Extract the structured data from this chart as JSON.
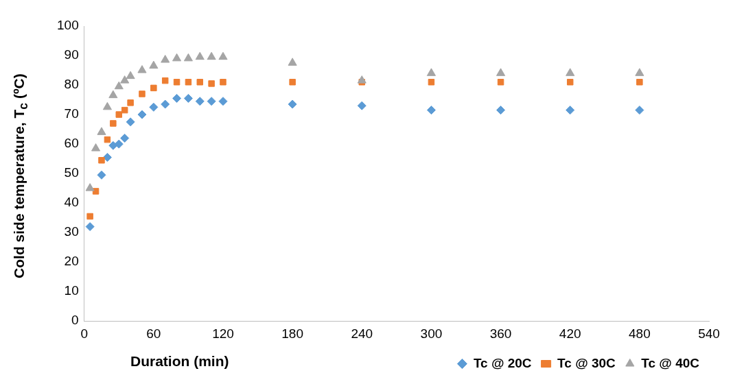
{
  "chart_data": {
    "type": "scatter",
    "xlabel": "Duration (min)",
    "ylabel": "Cold side temperature, T$_{c}$  (ºC)",
    "xlim": [
      0,
      540
    ],
    "xticks": [
      0,
      60,
      120,
      180,
      240,
      300,
      360,
      420,
      480,
      540
    ],
    "ylim": [
      0,
      100
    ],
    "yticks": [
      0,
      10,
      20,
      30,
      40,
      50,
      60,
      70,
      80,
      90,
      100
    ],
    "grid": false,
    "legend": "bottom right",
    "series": [
      {
        "name": "Tc @ 20C",
        "color": "#5b9bd5",
        "marker": "diamond",
        "x": [
          5,
          15,
          20,
          25,
          30,
          35,
          40,
          50,
          60,
          70,
          80,
          90,
          100,
          110,
          120,
          180,
          240,
          300,
          360,
          420,
          480
        ],
        "values": [
          32,
          49.5,
          55.5,
          59.5,
          60,
          62,
          67.5,
          70,
          72.5,
          73.5,
          75.5,
          75.5,
          74.5,
          74.5,
          74.5,
          73.5,
          73,
          71.5,
          71.5,
          71.5,
          71.5
        ]
      },
      {
        "name": "Tc @ 30C",
        "color": "#ed7d31",
        "marker": "square",
        "x": [
          5,
          10,
          15,
          20,
          25,
          30,
          35,
          40,
          50,
          60,
          70,
          80,
          90,
          100,
          110,
          120,
          180,
          240,
          300,
          360,
          420,
          480
        ],
        "values": [
          35.5,
          44,
          54.5,
          61.5,
          67,
          70,
          71.5,
          74,
          77,
          79,
          81.5,
          81,
          81,
          81,
          80.5,
          81,
          81,
          81,
          81,
          81,
          81,
          81
        ]
      },
      {
        "name": "Tc @ 40C",
        "color": "#a5a5a5",
        "marker": "triangle",
        "x": [
          5,
          10,
          15,
          20,
          25,
          30,
          35,
          40,
          50,
          60,
          70,
          80,
          90,
          100,
          110,
          120,
          180,
          240,
          300,
          360,
          420,
          480
        ],
        "values": [
          45,
          58.5,
          64,
          72.5,
          76.5,
          79.5,
          81.5,
          83,
          85,
          86.5,
          88.5,
          89,
          89,
          89.5,
          89.5,
          89.5,
          87.5,
          81.5,
          84,
          84,
          84,
          84
        ]
      }
    ]
  }
}
